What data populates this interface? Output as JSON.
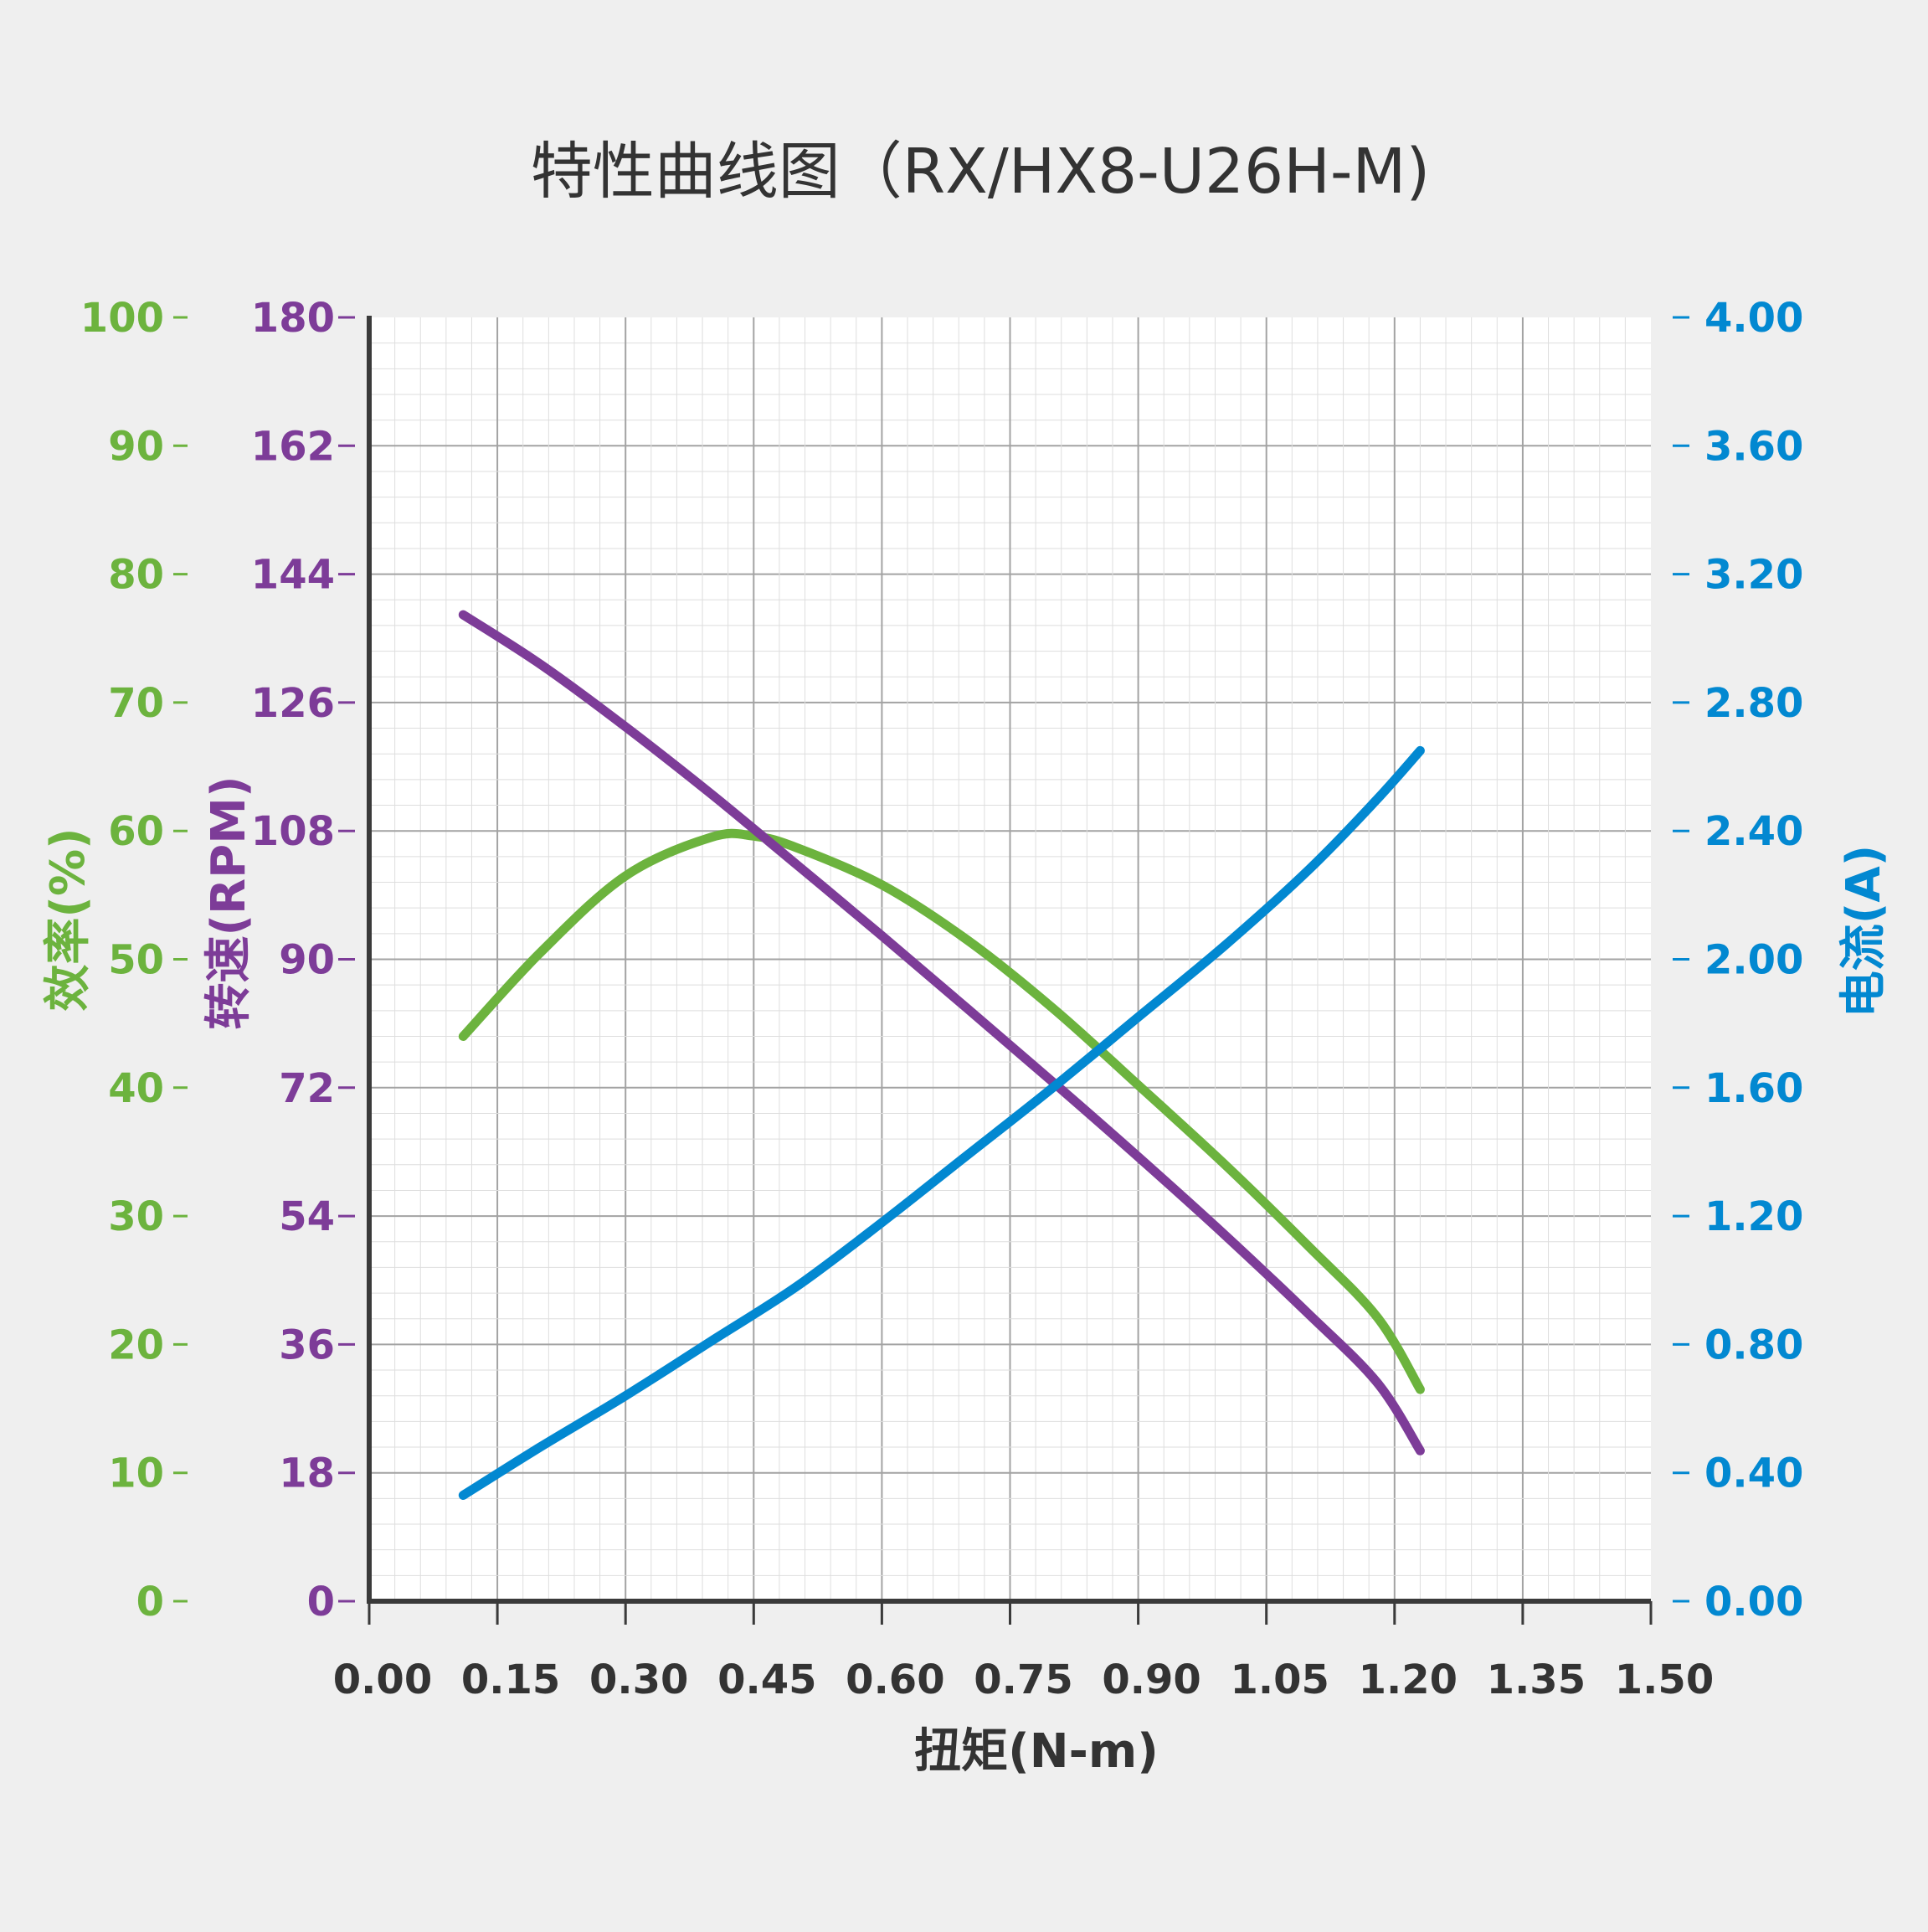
{
  "chart_data": {
    "type": "line",
    "title": "特性曲线图（RX/HX8-U26H-M)",
    "xlabel": "扭矩(N-m)",
    "xlim": [
      0,
      1.5
    ],
    "xticks": [
      "0.00",
      "0.15",
      "0.30",
      "0.45",
      "0.60",
      "0.75",
      "0.90",
      "1.05",
      "1.20",
      "1.35",
      "1.50"
    ],
    "grid": true,
    "axes": {
      "efficiency": {
        "label": "效率(%)",
        "position": "left-outer",
        "ylim": [
          0,
          100
        ],
        "ticks": [
          "0",
          "10",
          "20",
          "30",
          "40",
          "50",
          "60",
          "70",
          "80",
          "90",
          "100"
        ],
        "color": "#6cb33e"
      },
      "speed": {
        "label": "转速(RPM)",
        "position": "left-inner",
        "ylim": [
          0,
          180
        ],
        "ticks": [
          "0",
          "18",
          "36",
          "54",
          "72",
          "90",
          "108",
          "126",
          "144",
          "162",
          "180"
        ],
        "color": "#7d3c98"
      },
      "current": {
        "label": "电流(A)",
        "position": "right",
        "ylim": [
          0,
          4
        ],
        "ticks": [
          "0.00",
          "0.40",
          "0.80",
          "1.20",
          "1.60",
          "2.00",
          "2.40",
          "2.80",
          "3.20",
          "3.60",
          "4.00"
        ],
        "color": "#0288d1"
      }
    },
    "series": [
      {
        "axis": "efficiency",
        "color": "#6cb33e",
        "points": [
          [
            0.11,
            44
          ],
          [
            0.2,
            50.5
          ],
          [
            0.3,
            56.5
          ],
          [
            0.4,
            59.5
          ],
          [
            0.45,
            59.6
          ],
          [
            0.5,
            58.7
          ],
          [
            0.6,
            55.8
          ],
          [
            0.7,
            51.5
          ],
          [
            0.8,
            46.2
          ],
          [
            0.9,
            40.2
          ],
          [
            1.0,
            34.1
          ],
          [
            1.1,
            27.6
          ],
          [
            1.18,
            22.1
          ],
          [
            1.23,
            16.5
          ]
        ]
      },
      {
        "axis": "speed",
        "color": "#7d3c98",
        "points": [
          [
            0.11,
            138.3
          ],
          [
            0.2,
            131.4
          ],
          [
            0.3,
            122.6
          ],
          [
            0.4,
            113.2
          ],
          [
            0.5,
            103.3
          ],
          [
            0.6,
            93.3
          ],
          [
            0.7,
            83.1
          ],
          [
            0.8,
            72.8
          ],
          [
            0.9,
            62.3
          ],
          [
            1.0,
            51.5
          ],
          [
            1.1,
            40.2
          ],
          [
            1.18,
            30.6
          ],
          [
            1.23,
            21.1
          ]
        ]
      },
      {
        "axis": "current",
        "color": "#0288d1",
        "points": [
          [
            0.11,
            0.33
          ],
          [
            0.2,
            0.48
          ],
          [
            0.3,
            0.64
          ],
          [
            0.4,
            0.81
          ],
          [
            0.5,
            0.98
          ],
          [
            0.6,
            1.18
          ],
          [
            0.7,
            1.39
          ],
          [
            0.8,
            1.6
          ],
          [
            0.9,
            1.82
          ],
          [
            1.0,
            2.04
          ],
          [
            1.1,
            2.28
          ],
          [
            1.18,
            2.5
          ],
          [
            1.23,
            2.65
          ]
        ]
      }
    ]
  }
}
